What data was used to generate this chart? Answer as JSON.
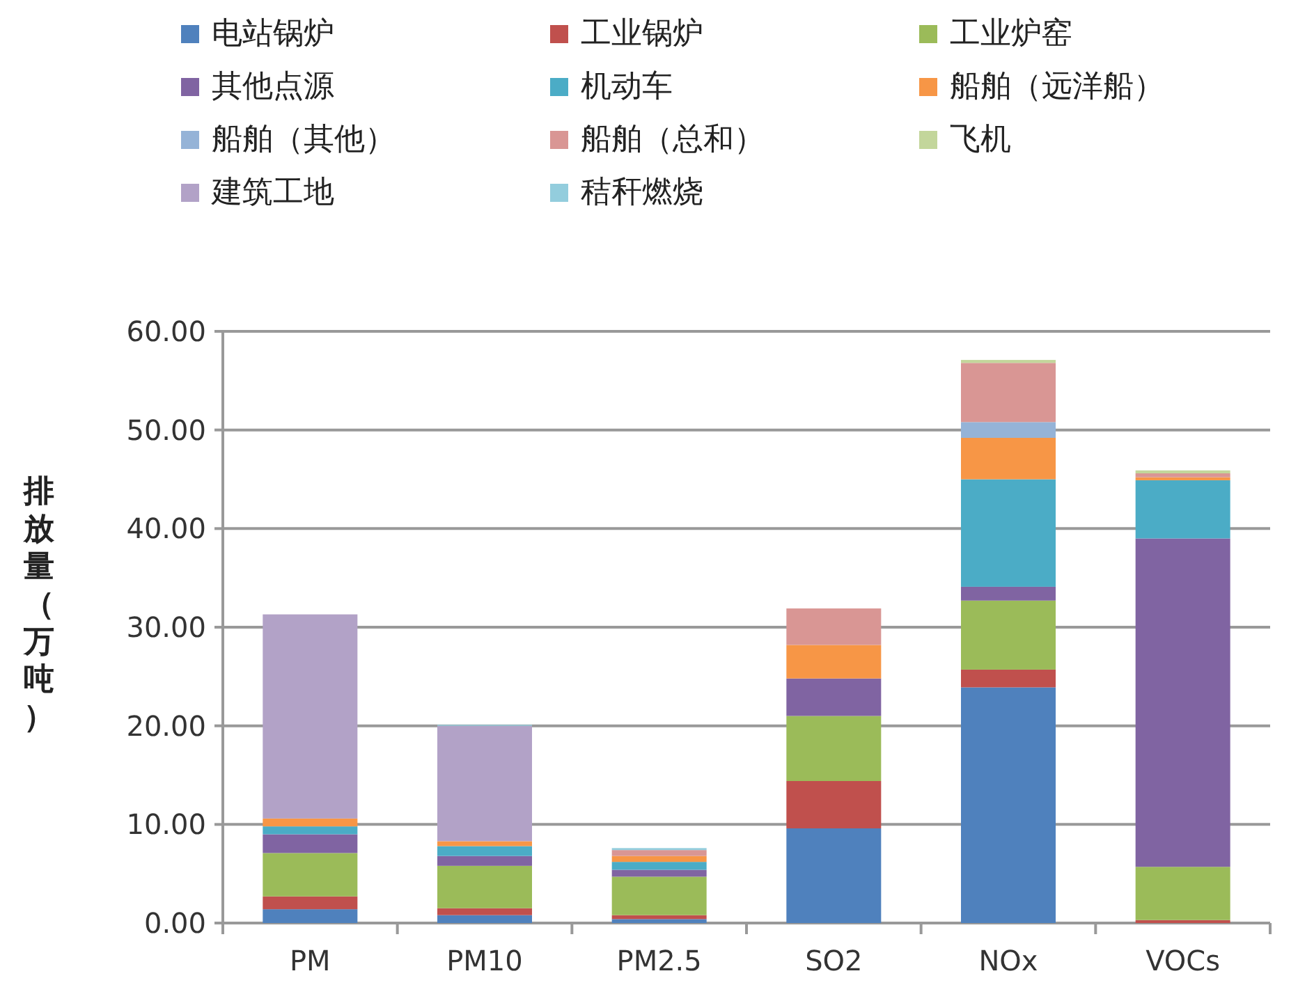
{
  "chart_data": {
    "type": "bar",
    "stacked": true,
    "ylabel": "排放量（万吨）",
    "categories": [
      "PM",
      "PM10",
      "PM2.5",
      "SO2",
      "NOx",
      "VOCs"
    ],
    "ylim": [
      0,
      60
    ],
    "yticks": [
      {
        "value": 0,
        "label": "0.00"
      },
      {
        "value": 10,
        "label": "10.00"
      },
      {
        "value": 20,
        "label": "20.00"
      },
      {
        "value": 30,
        "label": "30.00"
      },
      {
        "value": 40,
        "label": "40.00"
      },
      {
        "value": 50,
        "label": "50.00"
      },
      {
        "value": 60,
        "label": "60.00"
      }
    ],
    "grid": "y",
    "legend": "top",
    "series": [
      {
        "name": "电站锅炉",
        "color": "#4f81bd",
        "values": [
          1.4,
          0.8,
          0.4,
          9.6,
          23.9,
          null
        ]
      },
      {
        "name": "工业锅炉",
        "color": "#c0504d",
        "values": [
          1.3,
          0.7,
          0.4,
          4.8,
          1.8,
          0.3
        ]
      },
      {
        "name": "工业炉窑",
        "color": "#9bbb59",
        "values": [
          4.4,
          4.3,
          3.9,
          6.6,
          7.0,
          5.4
        ]
      },
      {
        "name": "其他点源",
        "color": "#8064a2",
        "values": [
          1.9,
          1.0,
          0.7,
          3.8,
          1.4,
          33.3
        ]
      },
      {
        "name": "机动车",
        "color": "#4bacc6",
        "values": [
          0.8,
          1.0,
          0.8,
          null,
          10.9,
          5.9
        ]
      },
      {
        "name": "船舶（远洋船）",
        "color": "#f79646",
        "values": [
          0.8,
          0.5,
          0.6,
          3.4,
          4.2,
          0.3
        ]
      },
      {
        "name": "船舶（其他）",
        "color": "#95b3d7",
        "values": [
          null,
          null,
          null,
          null,
          1.6,
          null
        ]
      },
      {
        "name": "船舶（总和）",
        "color": "#d99694",
        "values": [
          null,
          null,
          0.6,
          3.7,
          6.0,
          0.4
        ]
      },
      {
        "name": "飞机",
        "color": "#c3d69b",
        "values": [
          null,
          null,
          null,
          null,
          0.3,
          0.3
        ]
      },
      {
        "name": "建筑工地",
        "color": "#b2a2c7",
        "values": [
          20.7,
          11.7,
          null,
          null,
          null,
          null
        ]
      },
      {
        "name": "秸秆燃烧",
        "color": "#93cddd",
        "values": [
          null,
          0.1,
          0.2,
          null,
          null,
          null
        ]
      }
    ]
  }
}
